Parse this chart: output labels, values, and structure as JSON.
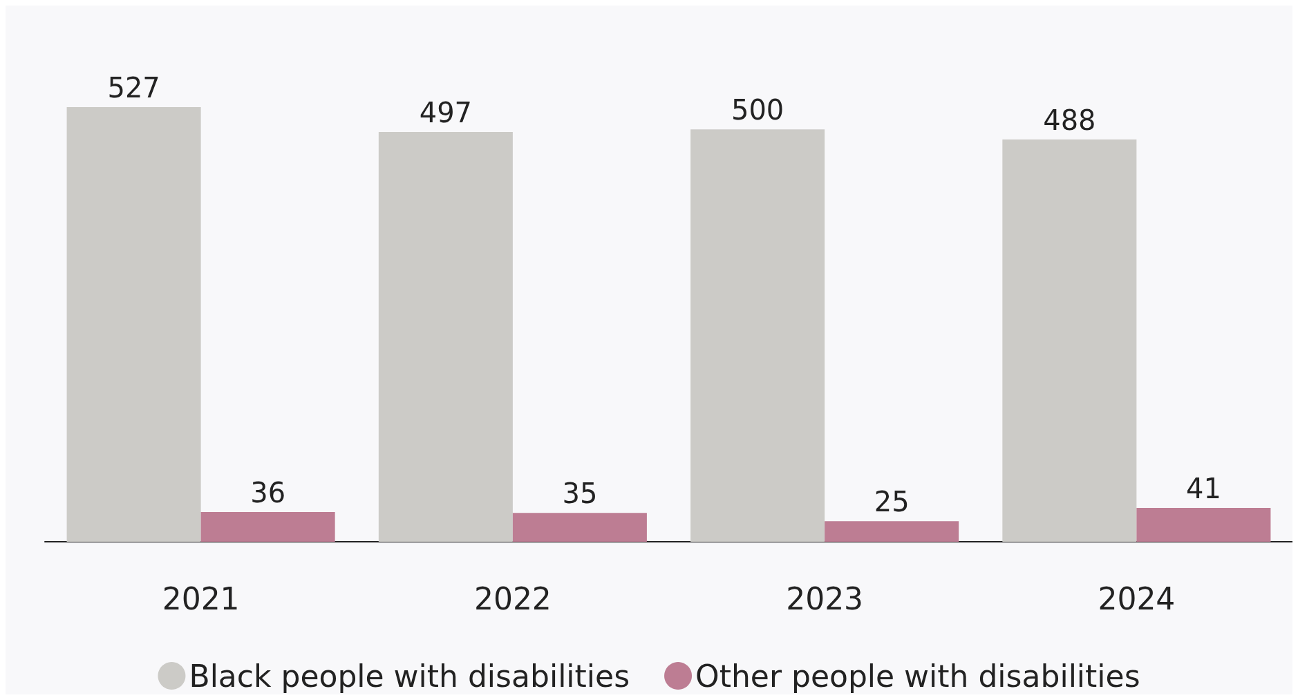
{
  "chart_data": {
    "type": "bar",
    "categories": [
      "2021",
      "2022",
      "2023",
      "2024"
    ],
    "series": [
      {
        "name": "Black people with disabilities",
        "color": "#cccbc7",
        "values": [
          527,
          497,
          500,
          488
        ]
      },
      {
        "name": "Other people with disabilities",
        "color": "#bd7d93",
        "values": [
          36,
          35,
          25,
          41
        ]
      }
    ],
    "data_labels": true,
    "legend": "bottom"
  }
}
